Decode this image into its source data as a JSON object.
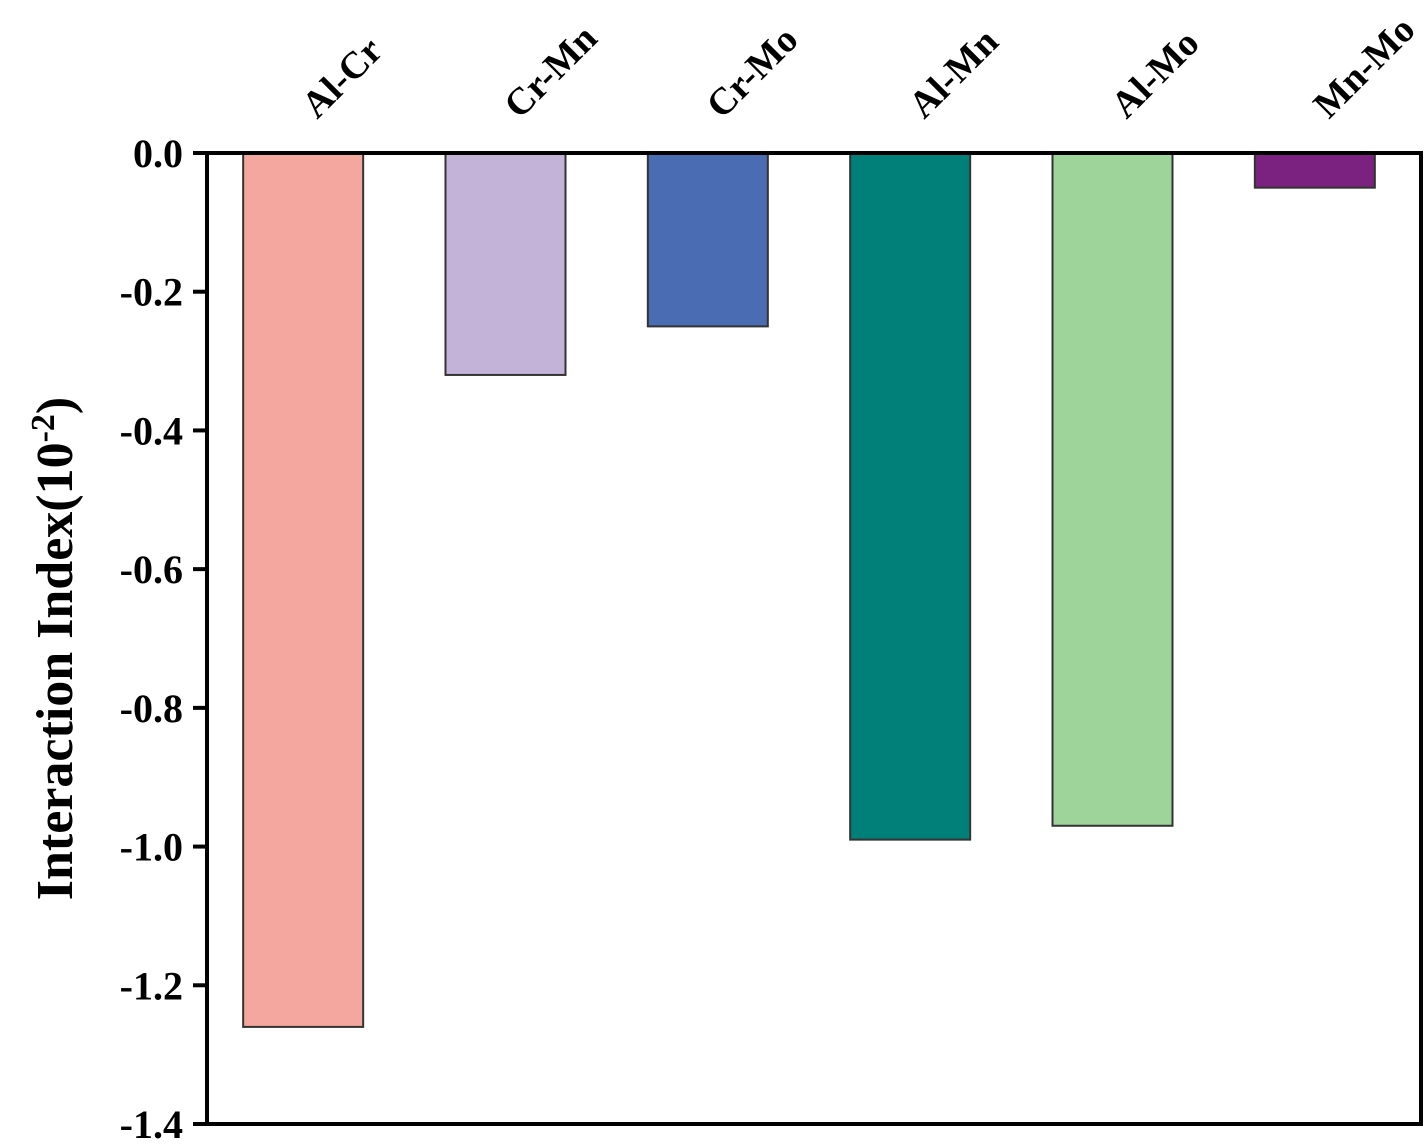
{
  "chart_data": {
    "type": "bar",
    "categories": [
      "Al-Cr",
      "Cr-Mn",
      "Cr-Mo",
      "Al-Mn",
      "Al-Mo",
      "Mn-Mo"
    ],
    "values": [
      -1.26,
      -0.32,
      -0.25,
      -0.99,
      -0.97,
      -0.05
    ],
    "colors": [
      "#f4a79e",
      "#c3b3d9",
      "#4a6cb3",
      "#008079",
      "#9ed49a",
      "#7b2280"
    ],
    "ylabel": "Interaction Index(10",
    "ylabel_sup": "-2",
    "ylabel_end": ")",
    "ylim": [
      -1.4,
      0.0
    ],
    "yticks": [
      "0.0",
      "-0.2",
      "-0.4",
      "-0.6",
      "-0.8",
      "-1.0",
      "-1.2",
      "-1.4"
    ],
    "grid": false,
    "category_axis_position": "top"
  }
}
